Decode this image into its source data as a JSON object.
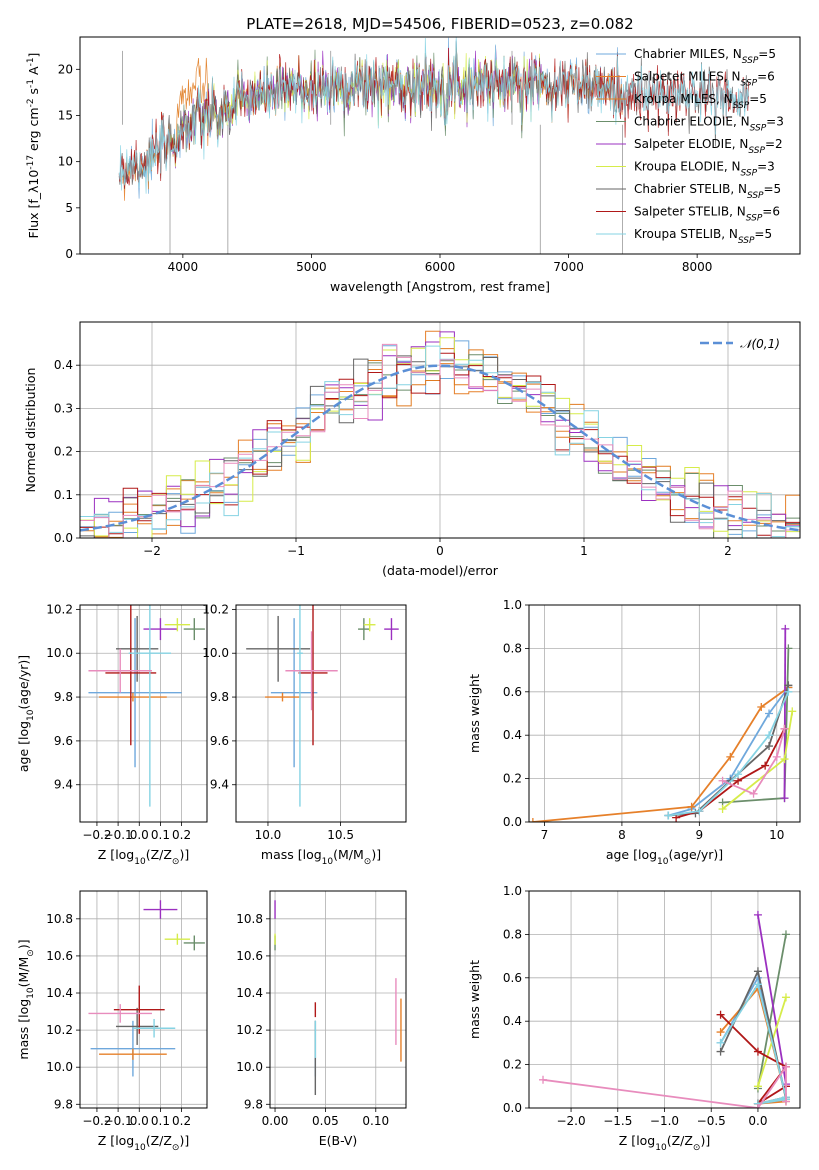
{
  "title": "PLATE=2618, MJD=54506, FIBERID=0523, z=0.082",
  "colors": {
    "Chabrier MILES": "#6fa8dc",
    "Salpeter MILES": "#e6802a",
    "Kroupa MILES": "#e07b20",
    "Chabrier ELODIE": "#6b8e6b",
    "Salpeter ELODIE": "#9b30c0",
    "Kroupa ELODIE": "#d6ec4a",
    "Chabrier STELIB": "#666666",
    "Salpeter STELIB": "#b01818",
    "Kroupa STELIB": "#86d3e3",
    "pink": "#e88cbd",
    "normal": "#5b8fd6",
    "grid": "#b0b0b0"
  },
  "chart_data": [
    {
      "id": "spectrum",
      "type": "line",
      "xlabel": "wavelength [Angstrom, rest frame]",
      "ylabel": "Flux [f_λ10^-17 erg cm^-2 s^-1 A^-1]",
      "xlim": [
        3200,
        8800
      ],
      "ylim": [
        0,
        23.5
      ],
      "xticks": [
        4000,
        5000,
        6000,
        7000,
        8000
      ],
      "yticks": [
        0,
        5,
        10,
        15,
        20
      ],
      "grid": false,
      "legend_position": "right",
      "legend": [
        {
          "model": "Chabrier MILES",
          "nssp": "5"
        },
        {
          "model": "Salpeter MILES",
          "nssp": "6"
        },
        {
          "model": "Kroupa MILES",
          "nssp": "5"
        },
        {
          "model": "Chabrier ELODIE",
          "nssp": "3"
        },
        {
          "model": "Salpeter ELODIE",
          "nssp": "2"
        },
        {
          "model": "Kroupa ELODIE",
          "nssp": "3"
        },
        {
          "model": "Chabrier STELIB",
          "nssp": "5"
        },
        {
          "model": "Salpeter STELIB",
          "nssp": "6"
        },
        {
          "model": "Kroupa STELIB",
          "nssp": "5"
        }
      ],
      "continuum": {
        "wavelength": [
          3500,
          3700,
          3900,
          4000,
          4100,
          4300,
          4500,
          5000,
          5500,
          6000,
          6500,
          7000,
          7400,
          7600,
          8000,
          8400
        ],
        "flux": [
          9,
          10,
          11.5,
          13.5,
          14.5,
          15,
          17,
          18,
          18.3,
          18.3,
          18.5,
          18.5,
          17.5,
          17,
          17.5,
          16.5
        ]
      }
    },
    {
      "id": "residuals",
      "type": "histogram",
      "xlabel": "(data-model)/error",
      "ylabel": "Normed distribution",
      "xlim": [
        -2.5,
        2.5
      ],
      "ylim": [
        0,
        0.5
      ],
      "xticks": [
        -2,
        -1,
        0,
        1,
        2
      ],
      "yticks": [
        0.0,
        0.1,
        0.2,
        0.3,
        0.4
      ],
      "grid": true,
      "legend_position": "top-right",
      "legend": "𝒩(0,1)",
      "bin_width": 0.1
    },
    {
      "id": "age-vs-Z",
      "type": "scatter",
      "xlabel": "Z [log10(Z/Z☉)]",
      "ylabel": "age  [log10(age/yr)]",
      "xlim": [
        -0.28,
        0.32
      ],
      "ylim": [
        9.23,
        10.22
      ],
      "xticks": [
        -0.2,
        -0.1,
        0.0,
        0.1,
        0.2
      ],
      "yticks": [
        9.4,
        9.6,
        9.8,
        10.0,
        10.2
      ],
      "grid": true,
      "points": [
        {
          "series": "Chabrier MILES",
          "x": -0.02,
          "y": 9.82,
          "xerr": 0.22,
          "yerr": 0.34
        },
        {
          "series": "Salpeter MILES",
          "x": -0.03,
          "y": 9.8,
          "xerr": 0.16,
          "yerr": 0.02
        },
        {
          "series": "Chabrier ELODIE",
          "x": 0.26,
          "y": 10.11,
          "xerr": 0.05,
          "yerr": 0.05
        },
        {
          "series": "Salpeter ELODIE",
          "x": 0.1,
          "y": 10.11,
          "xerr": 0.08,
          "yerr": 0.05
        },
        {
          "series": "Kroupa ELODIE",
          "x": 0.18,
          "y": 10.13,
          "xerr": 0.06,
          "yerr": 0.03
        },
        {
          "series": "Chabrier STELIB",
          "x": -0.01,
          "y": 10.02,
          "xerr": 0.1,
          "yerr": 0.15
        },
        {
          "series": "Salpeter STELIB",
          "x": -0.04,
          "y": 9.91,
          "xerr": 0.12,
          "yerr": 0.33
        },
        {
          "series": "Kroupa STELIB",
          "x": 0.05,
          "y": 10.0,
          "xerr": 0.1,
          "yerr": 0.7
        },
        {
          "series": "pink",
          "x": -0.09,
          "y": 9.92,
          "xerr": 0.15,
          "yerr": 0.1
        }
      ]
    },
    {
      "id": "age-vs-mass",
      "type": "scatter",
      "xlabel": "mass [log10(M/M☉)]",
      "xlim": [
        9.78,
        10.95
      ],
      "ylim": [
        9.23,
        10.22
      ],
      "xticks": [
        10.0,
        10.5
      ],
      "yticks": [
        9.4,
        9.6,
        9.8,
        10.0,
        10.2
      ],
      "grid": true,
      "points": [
        {
          "series": "Chabrier MILES",
          "x": 10.18,
          "y": 9.82,
          "xerr": 0.16,
          "yerr": 0.34
        },
        {
          "series": "Salpeter MILES",
          "x": 10.1,
          "y": 9.8,
          "xerr": 0.12,
          "yerr": 0.02
        },
        {
          "series": "Chabrier ELODIE",
          "x": 10.66,
          "y": 10.11,
          "xerr": 0.04,
          "yerr": 0.05
        },
        {
          "series": "Salpeter ELODIE",
          "x": 10.85,
          "y": 10.11,
          "xerr": 0.05,
          "yerr": 0.05
        },
        {
          "series": "Kroupa ELODIE",
          "x": 10.7,
          "y": 10.13,
          "xerr": 0.04,
          "yerr": 0.03
        },
        {
          "series": "Chabrier STELIB",
          "x": 10.07,
          "y": 10.02,
          "xerr": 0.22,
          "yerr": 0.15
        },
        {
          "series": "Salpeter STELIB",
          "x": 10.31,
          "y": 9.91,
          "xerr": 0.1,
          "yerr": 0.33
        },
        {
          "series": "Kroupa STELIB",
          "x": 10.22,
          "y": 10.0,
          "xerr": 0.02,
          "yerr": 0.7
        },
        {
          "series": "pink",
          "x": 10.3,
          "y": 9.92,
          "xerr": 0.18,
          "yerr": 0.18
        }
      ]
    },
    {
      "id": "mass-weight-vs-age",
      "type": "line",
      "xlabel": "age  [log10(age/yr)]",
      "ylabel": "mass weight",
      "xlim": [
        6.8,
        10.3
      ],
      "ylim": [
        0,
        1.0
      ],
      "xticks": [
        7,
        8,
        9,
        10
      ],
      "yticks": [
        0.0,
        0.2,
        0.4,
        0.6,
        0.8,
        1.0
      ],
      "grid": true,
      "series": [
        {
          "name": "Chabrier MILES",
          "x": [
            8.6,
            8.9,
            9.4,
            9.9,
            10.15
          ],
          "y": [
            0.03,
            0.06,
            0.2,
            0.5,
            0.62
          ]
        },
        {
          "name": "Salpeter MILES",
          "x": [
            6.85,
            8.9,
            9.4,
            9.8,
            10.15
          ],
          "y": [
            0.0,
            0.07,
            0.3,
            0.53,
            0.62
          ]
        },
        {
          "name": "Chabrier ELODIE",
          "x": [
            9.3,
            10.1,
            10.15
          ],
          "y": [
            0.09,
            0.11,
            0.8
          ]
        },
        {
          "name": "Salpeter ELODIE",
          "x": [
            10.1,
            10.11
          ],
          "y": [
            0.11,
            0.89
          ]
        },
        {
          "name": "Kroupa ELODIE",
          "x": [
            9.3,
            10.1,
            10.2
          ],
          "y": [
            0.06,
            0.29,
            0.51
          ]
        },
        {
          "name": "Chabrier STELIB",
          "x": [
            8.6,
            8.95,
            9.4,
            9.9,
            10.15
          ],
          "y": [
            0.03,
            0.04,
            0.19,
            0.35,
            0.63
          ]
        },
        {
          "name": "Salpeter STELIB",
          "x": [
            8.7,
            9.0,
            9.5,
            9.85,
            10.1
          ],
          "y": [
            0.02,
            0.05,
            0.19,
            0.26,
            0.43
          ]
        },
        {
          "name": "Kroupa STELIB",
          "x": [
            8.6,
            9.0,
            9.5,
            9.9,
            10.15
          ],
          "y": [
            0.03,
            0.05,
            0.22,
            0.4,
            0.6
          ]
        },
        {
          "name": "pink",
          "x": [
            9.3,
            9.7,
            10.0,
            10.1
          ],
          "y": [
            0.19,
            0.13,
            0.3,
            0.43
          ]
        }
      ]
    },
    {
      "id": "mass-vs-Z",
      "type": "scatter",
      "xlabel": "Z [log10(Z/Z☉)]",
      "ylabel": "mass [log10(M/M☉)]",
      "xlim": [
        -0.28,
        0.32
      ],
      "ylim": [
        9.78,
        10.95
      ],
      "xticks": [
        -0.2,
        -0.1,
        0.0,
        0.1,
        0.2
      ],
      "yticks": [
        9.8,
        10.0,
        10.2,
        10.4,
        10.6,
        10.8
      ],
      "grid": true,
      "points": [
        {
          "series": "Chabrier MILES",
          "x": -0.03,
          "y": 10.1,
          "xerr": 0.2,
          "yerr": 0.15
        },
        {
          "series": "Salpeter MILES",
          "x": -0.03,
          "y": 10.07,
          "xerr": 0.16,
          "yerr": 0.03
        },
        {
          "series": "Chabrier ELODIE",
          "x": 0.26,
          "y": 10.67,
          "xerr": 0.05,
          "yerr": 0.04
        },
        {
          "series": "Salpeter ELODIE",
          "x": 0.1,
          "y": 10.85,
          "xerr": 0.08,
          "yerr": 0.05
        },
        {
          "series": "Kroupa ELODIE",
          "x": 0.18,
          "y": 10.69,
          "xerr": 0.06,
          "yerr": 0.03
        },
        {
          "series": "Chabrier STELIB",
          "x": -0.01,
          "y": 10.22,
          "xerr": 0.1,
          "yerr": 0.1
        },
        {
          "series": "Salpeter STELIB",
          "x": 0.0,
          "y": 10.31,
          "xerr": 0.12,
          "yerr": 0.13
        },
        {
          "series": "Kroupa STELIB",
          "x": 0.07,
          "y": 10.21,
          "xerr": 0.1,
          "yerr": 0.05
        },
        {
          "series": "pink",
          "x": -0.09,
          "y": 10.29,
          "xerr": 0.15,
          "yerr": 0.05
        }
      ]
    },
    {
      "id": "mass-vs-EBV",
      "type": "scatter",
      "xlabel": "E(B-V)",
      "xlim": [
        -0.005,
        0.13
      ],
      "ylim": [
        9.78,
        10.95
      ],
      "xticks": [
        0.0,
        0.05,
        0.1
      ],
      "yticks": [
        9.8,
        10.0,
        10.2,
        10.4,
        10.6,
        10.8
      ],
      "grid": true,
      "points": [
        {
          "series": "Chabrier MILES",
          "x": 0.04,
          "y": 10.1,
          "yerr": 0.15
        },
        {
          "series": "Salpeter MILES",
          "x": 0.125,
          "y": 10.2,
          "yerr": 0.17
        },
        {
          "series": "Chabrier ELODIE",
          "x": 0.0,
          "y": 10.67,
          "yerr": 0.04
        },
        {
          "series": "Salpeter ELODIE",
          "x": 0.0,
          "y": 10.85,
          "yerr": 0.05
        },
        {
          "series": "Kroupa ELODIE",
          "x": 0.0,
          "y": 10.69,
          "yerr": 0.03
        },
        {
          "series": "Chabrier STELIB",
          "x": 0.04,
          "y": 10.05,
          "yerr": 0.2
        },
        {
          "series": "Salpeter STELIB",
          "x": 0.04,
          "y": 10.31,
          "yerr": 0.04
        },
        {
          "series": "Kroupa STELIB",
          "x": 0.04,
          "y": 10.15,
          "yerr": 0.1
        },
        {
          "series": "pink",
          "x": 0.12,
          "y": 10.3,
          "yerr": 0.18
        }
      ]
    },
    {
      "id": "mass-weight-vs-Z",
      "type": "line",
      "xlabel": "Z [log10(Z/Z☉)]",
      "ylabel": "mass weight",
      "xlim": [
        -2.45,
        0.45
      ],
      "ylim": [
        0,
        1.0
      ],
      "xticks": [
        -2.0,
        -1.5,
        -1.0,
        -0.5,
        0.0
      ],
      "yticks": [
        0.0,
        0.2,
        0.4,
        0.6,
        0.8,
        1.0
      ],
      "grid": true,
      "series": [
        {
          "name": "Chabrier MILES",
          "x": [
            -0.4,
            0.0,
            0.3,
            0.0,
            0.3
          ],
          "y": [
            0.3,
            0.6,
            0.05,
            0.02,
            0.05
          ]
        },
        {
          "name": "Salpeter MILES",
          "x": [
            -0.4,
            0.0,
            0.3,
            0.0,
            0.3
          ],
          "y": [
            0.35,
            0.55,
            0.05,
            0.02,
            0.03
          ]
        },
        {
          "name": "Chabrier ELODIE",
          "x": [
            0.0,
            0.3
          ],
          "y": [
            0.09,
            0.8
          ]
        },
        {
          "name": "Salpeter ELODIE",
          "x": [
            0.0,
            0.3
          ],
          "y": [
            0.89,
            0.11
          ]
        },
        {
          "name": "Kroupa ELODIE",
          "x": [
            0.0,
            0.3
          ],
          "y": [
            0.1,
            0.51
          ]
        },
        {
          "name": "Chabrier STELIB",
          "x": [
            -0.4,
            0.0,
            0.3,
            0.0
          ],
          "y": [
            0.26,
            0.63,
            0.04,
            0.02
          ]
        },
        {
          "name": "Salpeter STELIB",
          "x": [
            -0.4,
            0.0,
            0.3,
            0.0,
            0.3
          ],
          "y": [
            0.43,
            0.26,
            0.19,
            0.02,
            0.1
          ]
        },
        {
          "name": "Kroupa STELIB",
          "x": [
            -0.4,
            0.0,
            0.3,
            0.0,
            0.3
          ],
          "y": [
            0.3,
            0.57,
            0.05,
            0.02,
            0.04
          ]
        },
        {
          "name": "pink",
          "x": [
            -2.3,
            0.0,
            0.3,
            0.3
          ],
          "y": [
            0.13,
            0.0,
            0.19,
            0.03
          ]
        }
      ]
    }
  ]
}
